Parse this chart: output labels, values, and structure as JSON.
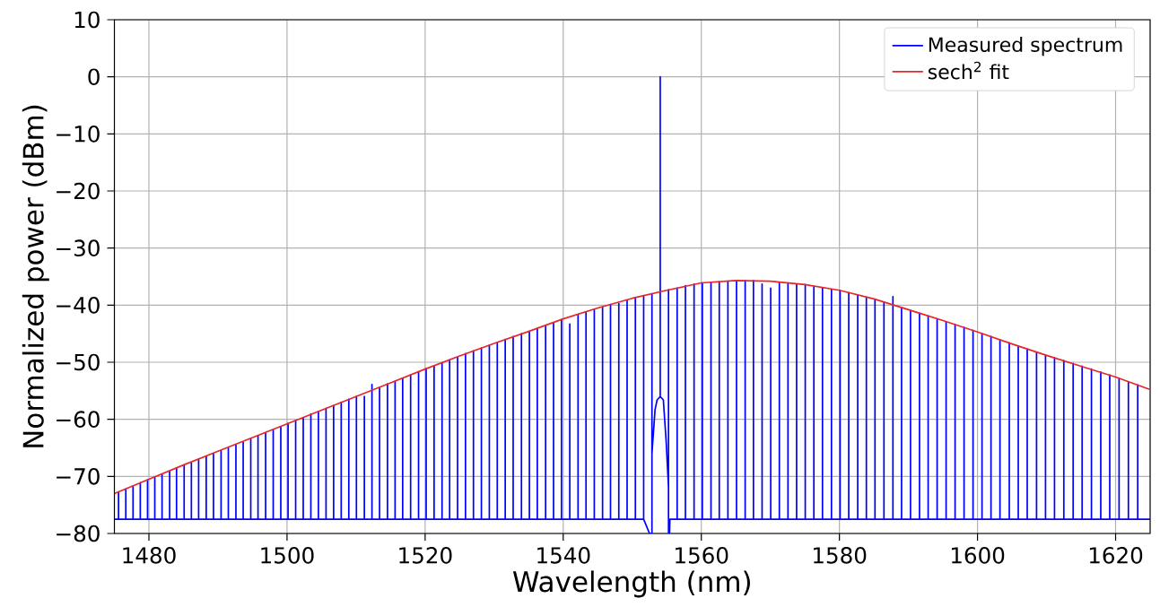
{
  "chart_data": {
    "type": "line",
    "xlabel": "Wavelength (nm)",
    "ylabel": "Normalized power (dBm)",
    "xlim": [
      1475,
      1625
    ],
    "ylim": [
      -80,
      10
    ],
    "xticks": [
      1480,
      1500,
      1520,
      1540,
      1560,
      1580,
      1600,
      1620
    ],
    "yticks": [
      {
        "value": -80,
        "label": "−80"
      },
      {
        "value": -70,
        "label": "−70"
      },
      {
        "value": -60,
        "label": "−60"
      },
      {
        "value": -50,
        "label": "−50"
      },
      {
        "value": -40,
        "label": "−40"
      },
      {
        "value": -30,
        "label": "−30"
      },
      {
        "value": -20,
        "label": "−20"
      },
      {
        "value": -10,
        "label": "−10"
      },
      0,
      10
    ],
    "grid": true,
    "legend": "top right",
    "series": [
      {
        "name": "Measured spectrum",
        "color": "#0000ff",
        "x": [
          1475,
          1475.6,
          1475.6,
          1475.6,
          1476.65,
          1476.65,
          1476.65,
          1477.7,
          1477.7,
          1477.7,
          1478.75,
          1478.75,
          1478.75,
          1479.8,
          1479.8,
          1479.8,
          1480.85,
          1480.85,
          1480.85,
          1481.9,
          1481.9,
          1481.9,
          1483.0,
          1483.0,
          1483.0,
          1484.0,
          1484.0,
          1484.0,
          1485.1,
          1485.1,
          1485.1,
          1486.15,
          1486.15,
          1486.15,
          1487.2,
          1487.2,
          1487.2,
          1488.3,
          1488.3,
          1488.3,
          1489.35,
          1489.35,
          1489.35,
          1490.45,
          1490.45,
          1490.45,
          1491.5,
          1491.5,
          1491.5,
          1492.6,
          1492.6,
          1492.6,
          1493.65,
          1493.65,
          1493.65,
          1494.75,
          1494.75,
          1494.75,
          1495.8,
          1495.8,
          1495.8,
          1496.9,
          1496.9,
          1496.9,
          1498.0,
          1498.0,
          1498.0,
          1499.1,
          1499.1,
          1499.1,
          1500.15,
          1500.15,
          1500.15,
          1501.25,
          1501.25,
          1501.25,
          1502.35,
          1502.35,
          1502.35,
          1503.45,
          1503.45,
          1503.45,
          1504.55,
          1504.55,
          1504.55,
          1505.65,
          1505.65,
          1505.65,
          1506.75,
          1506.75,
          1506.75,
          1507.85,
          1507.85,
          1507.85,
          1508.95,
          1508.95,
          1508.95,
          1510.05,
          1510.05,
          1510.05,
          1511.2,
          1511.2,
          1511.2,
          1512.3,
          1512.3,
          1512.3,
          1513.4,
          1513.4,
          1513.4,
          1514.55,
          1514.55,
          1514.55,
          1515.65,
          1515.65,
          1515.65,
          1516.75,
          1516.75,
          1516.75,
          1517.9,
          1517.9,
          1517.9,
          1519.05,
          1519.05,
          1519.05,
          1520.15,
          1520.15,
          1520.15,
          1521.3,
          1521.3,
          1521.3,
          1522.45,
          1522.45,
          1522.45,
          1523.55,
          1523.55,
          1523.55,
          1524.7,
          1524.7,
          1524.7,
          1525.85,
          1525.85,
          1525.85,
          1527.0,
          1527.0,
          1527.0,
          1528.15,
          1528.15,
          1528.15,
          1529.3,
          1529.3,
          1529.3,
          1530.45,
          1530.45,
          1530.45,
          1531.6,
          1531.6,
          1531.6,
          1532.75,
          1532.75,
          1532.75,
          1533.95,
          1533.95,
          1533.95,
          1535.1,
          1535.1,
          1535.1,
          1536.25,
          1536.25,
          1536.25,
          1537.45,
          1537.45,
          1537.45,
          1538.6,
          1538.6,
          1538.6,
          1539.75,
          1539.75,
          1539.75,
          1540.95,
          1540.95,
          1540.95,
          1542.15,
          1542.15,
          1542.15,
          1543.3,
          1543.3,
          1543.3,
          1544.5,
          1544.5,
          1544.5,
          1545.7,
          1545.7,
          1545.7,
          1546.85,
          1546.85,
          1546.85,
          1548.05,
          1548.05,
          1548.05,
          1549.25,
          1549.25,
          1549.25,
          1550.45,
          1550.45,
          1550.45,
          1551.65,
          1551.65,
          1551.65,
          1552.5,
          1552.85,
          1552.85,
          1552.85,
          1553.3,
          1553.6,
          1554.05,
          1554.05,
          1554.05,
          1554.5,
          1554.9,
          1555.25,
          1555.25,
          1555.25,
          1555.4,
          1555.45,
          1556.5,
          1556.5,
          1556.5,
          1557.7,
          1557.7,
          1557.7,
          1558.95,
          1558.95,
          1558.95,
          1560.15,
          1560.15,
          1560.15,
          1561.4,
          1561.4,
          1561.4,
          1562.6,
          1562.6,
          1562.6,
          1563.85,
          1563.85,
          1563.85,
          1565.1,
          1565.1,
          1565.1,
          1566.35,
          1566.35,
          1566.35,
          1567.55,
          1567.55,
          1567.55,
          1568.8,
          1568.8,
          1568.8,
          1570.05,
          1570.05,
          1570.05,
          1571.3,
          1571.3,
          1571.3,
          1572.55,
          1572.55,
          1572.55,
          1573.8,
          1573.8,
          1573.8,
          1575.05,
          1575.05,
          1575.05,
          1576.3,
          1576.3,
          1576.3,
          1577.55,
          1577.55,
          1577.55,
          1578.85,
          1578.85,
          1578.85,
          1580.1,
          1580.1,
          1580.1,
          1581.35,
          1581.35,
          1581.35,
          1582.65,
          1582.65,
          1582.65,
          1583.9,
          1583.9,
          1583.9,
          1585.15,
          1585.15,
          1585.15,
          1586.45,
          1586.45,
          1586.45,
          1587.75,
          1587.75,
          1587.75,
          1589.0,
          1589.0,
          1589.0,
          1590.3,
          1590.3,
          1590.3,
          1591.6,
          1591.6,
          1591.6,
          1592.85,
          1592.85,
          1592.85,
          1594.15,
          1594.15,
          1594.15,
          1595.45,
          1595.45,
          1595.45,
          1596.75,
          1596.75,
          1596.75,
          1598.05,
          1598.05,
          1598.05,
          1599.35,
          1599.35,
          1599.35,
          1600.65,
          1600.65,
          1600.65,
          1601.95,
          1601.95,
          1601.95,
          1603.25,
          1603.25,
          1603.25,
          1604.6,
          1604.6,
          1604.6,
          1605.9,
          1605.9,
          1605.9,
          1607.2,
          1607.2,
          1607.2,
          1608.55,
          1608.55,
          1608.55,
          1609.85,
          1609.85,
          1609.85,
          1611.15,
          1611.15,
          1611.15,
          1612.5,
          1612.5,
          1612.5,
          1613.85,
          1613.85,
          1613.85,
          1615.15,
          1615.15,
          1615.15,
          1616.5,
          1616.5,
          1616.5,
          1617.85,
          1617.85,
          1617.85,
          1619.15,
          1619.15,
          1619.15,
          1620.5,
          1620.5,
          1620.5,
          1621.85,
          1621.85,
          1621.85,
          1623.2,
          1623.2,
          1623.2,
          1625
        ],
        "values": [
          -77.5,
          -77.5,
          -72.7,
          -77.5,
          -77.5,
          -72.2,
          -77.5,
          -77.5,
          -71.7,
          -77.5,
          -77.5,
          -71.1,
          -77.5,
          -77.5,
          -70.6,
          -77.5,
          -77.5,
          -70.1,
          -77.5,
          -77.5,
          -69.6,
          -77.5,
          -77.5,
          -69.1,
          -77.5,
          -77.5,
          -68.6,
          -77.5,
          -77.5,
          -68.1,
          -77.5,
          -77.5,
          -67.6,
          -77.5,
          -77.5,
          -67.1,
          -77.5,
          -77.5,
          -66.5,
          -77.5,
          -77.5,
          -66.0,
          -77.5,
          -77.5,
          -65.5,
          -77.5,
          -77.5,
          -65.0,
          -77.5,
          -77.5,
          -64.5,
          -77.5,
          -77.5,
          -64.0,
          -77.5,
          -77.5,
          -63.4,
          -77.5,
          -77.5,
          -62.9,
          -77.5,
          -77.5,
          -62.4,
          -77.5,
          -77.5,
          -61.8,
          -77.5,
          -77.5,
          -61.3,
          -77.5,
          -77.5,
          -60.7,
          -77.5,
          -77.5,
          -60.2,
          -77.5,
          -77.5,
          -59.7,
          -77.5,
          -77.5,
          -59.1,
          -77.5,
          -77.5,
          -58.6,
          -77.5,
          -77.5,
          -58.1,
          -77.5,
          -77.5,
          -57.6,
          -77.5,
          -77.5,
          -57.0,
          -77.5,
          -77.5,
          -56.5,
          -77.5,
          -77.5,
          -56.0,
          -77.5,
          -77.5,
          -56.0,
          -77.5,
          -77.5,
          -53.9,
          -77.5,
          -77.5,
          -54.4,
          -77.5,
          -77.5,
          -53.8,
          -77.5,
          -77.5,
          -53.3,
          -77.5,
          -77.5,
          -52.8,
          -77.5,
          -77.5,
          -52.2,
          -77.5,
          -77.5,
          -51.7,
          -77.5,
          -77.5,
          -51.1,
          -77.5,
          -77.5,
          -50.6,
          -77.5,
          -77.5,
          -50.1,
          -77.5,
          -77.5,
          -49.6,
          -77.5,
          -77.5,
          -49.1,
          -77.5,
          -77.5,
          -48.5,
          -77.5,
          -77.5,
          -48.0,
          -77.5,
          -77.5,
          -47.5,
          -77.5,
          -77.5,
          -47.0,
          -77.5,
          -77.5,
          -46.5,
          -77.5,
          -77.5,
          -46.0,
          -77.5,
          -77.5,
          -45.5,
          -77.5,
          -77.5,
          -45.0,
          -77.5,
          -77.5,
          -44.6,
          -77.5,
          -77.5,
          -44.1,
          -77.5,
          -77.5,
          -43.6,
          -77.5,
          -77.5,
          -43.1,
          -77.5,
          -77.5,
          -42.5,
          -77.5,
          -77.5,
          -43.3,
          -77.5,
          -77.5,
          -41.6,
          -77.5,
          -77.5,
          -41.2,
          -77.5,
          -77.5,
          -40.7,
          -77.5,
          -77.5,
          -40.3,
          -77.5,
          -77.5,
          -39.9,
          -77.5,
          -77.5,
          -39.7,
          -77.5,
          -77.5,
          -39.1,
          -77.5,
          -77.5,
          -38.7,
          -77.5,
          -77.5,
          -38.3,
          -77.5,
          -80,
          -80,
          -38.0,
          -66,
          -58.3,
          -56.6,
          -56.0,
          0,
          -56.0,
          -56.6,
          -63.7,
          -72,
          -37.3,
          -80,
          -80,
          -77.5,
          -77.5,
          -37.0,
          -77.5,
          -77.5,
          -36.6,
          -77.5,
          -77.5,
          -36.3,
          -77.5,
          -77.5,
          -36.1,
          -77.5,
          -77.5,
          -36.0,
          -77.5,
          -77.5,
          -35.9,
          -77.5,
          -77.5,
          -35.8,
          -77.5,
          -77.5,
          -35.7,
          -77.5,
          -77.5,
          -35.7,
          -77.5,
          -77.5,
          -35.7,
          -77.5,
          -77.5,
          -36.3,
          -77.5,
          -77.5,
          -37.0,
          -77.5,
          -77.5,
          -36.0,
          -77.5,
          -77.5,
          -36.1,
          -77.5,
          -77.5,
          -36.3,
          -77.5,
          -77.5,
          -36.4,
          -77.5,
          -77.5,
          -36.7,
          -77.5,
          -77.5,
          -36.9,
          -77.5,
          -77.5,
          -37.2,
          -77.5,
          -77.5,
          -37.4,
          -77.5,
          -77.5,
          -37.8,
          -77.5,
          -77.5,
          -38.2,
          -77.5,
          -77.5,
          -38.6,
          -77.5,
          -77.5,
          -39.0,
          -77.5,
          -77.5,
          -39.5,
          -77.5,
          -77.5,
          -38.5,
          -77.5,
          -77.5,
          -40.4,
          -77.5,
          -77.5,
          -40.9,
          -77.5,
          -77.5,
          -41.4,
          -77.5,
          -77.5,
          -41.9,
          -77.5,
          -77.5,
          -42.4,
          -77.5,
          -77.5,
          -42.9,
          -77.5,
          -77.5,
          -43.4,
          -77.5,
          -77.5,
          -43.9,
          -77.5,
          -77.5,
          -44.4,
          -77.5,
          -77.5,
          -45.0,
          -77.5,
          -77.5,
          -45.5,
          -77.5,
          -77.5,
          -46.1,
          -77.5,
          -77.5,
          -46.6,
          -77.5,
          -77.5,
          -47.2,
          -77.5,
          -77.5,
          -47.7,
          -77.5,
          -77.5,
          -48.2,
          -77.5,
          -77.5,
          -48.7,
          -77.5,
          -77.5,
          -49.2,
          -77.5,
          -77.5,
          -49.7,
          -77.5,
          -77.5,
          -50.2,
          -77.5,
          -77.5,
          -50.7,
          -77.5,
          -77.5,
          -51.2,
          -77.5,
          -77.5,
          -51.7,
          -77.5,
          -77.5,
          -52.2,
          -77.5,
          -77.5,
          -52.8,
          -77.5,
          -77.5,
          -53.4,
          -77.5,
          -77.5,
          -54.0,
          -77.5,
          -77.5
        ]
      },
      {
        "name": "sech$^{2}$ fit",
        "color": "#e8262a",
        "x": [
          1475,
          1480,
          1485,
          1490,
          1495,
          1500,
          1505,
          1510,
          1515,
          1520,
          1525,
          1530,
          1535,
          1540,
          1545,
          1550,
          1555,
          1560,
          1565,
          1570,
          1575,
          1580,
          1585,
          1590,
          1595,
          1600,
          1605,
          1610,
          1615,
          1620,
          1625
        ],
        "values": [
          -73.0,
          -70.5,
          -68.0,
          -65.6,
          -63.2,
          -60.8,
          -58.4,
          -56.0,
          -53.6,
          -51.2,
          -48.9,
          -46.7,
          -44.6,
          -42.4,
          -40.5,
          -38.8,
          -37.4,
          -36.1,
          -35.7,
          -35.8,
          -36.4,
          -37.4,
          -38.9,
          -40.8,
          -42.7,
          -44.7,
          -46.8,
          -48.8,
          -50.7,
          -52.6,
          -54.8
        ]
      }
    ]
  }
}
